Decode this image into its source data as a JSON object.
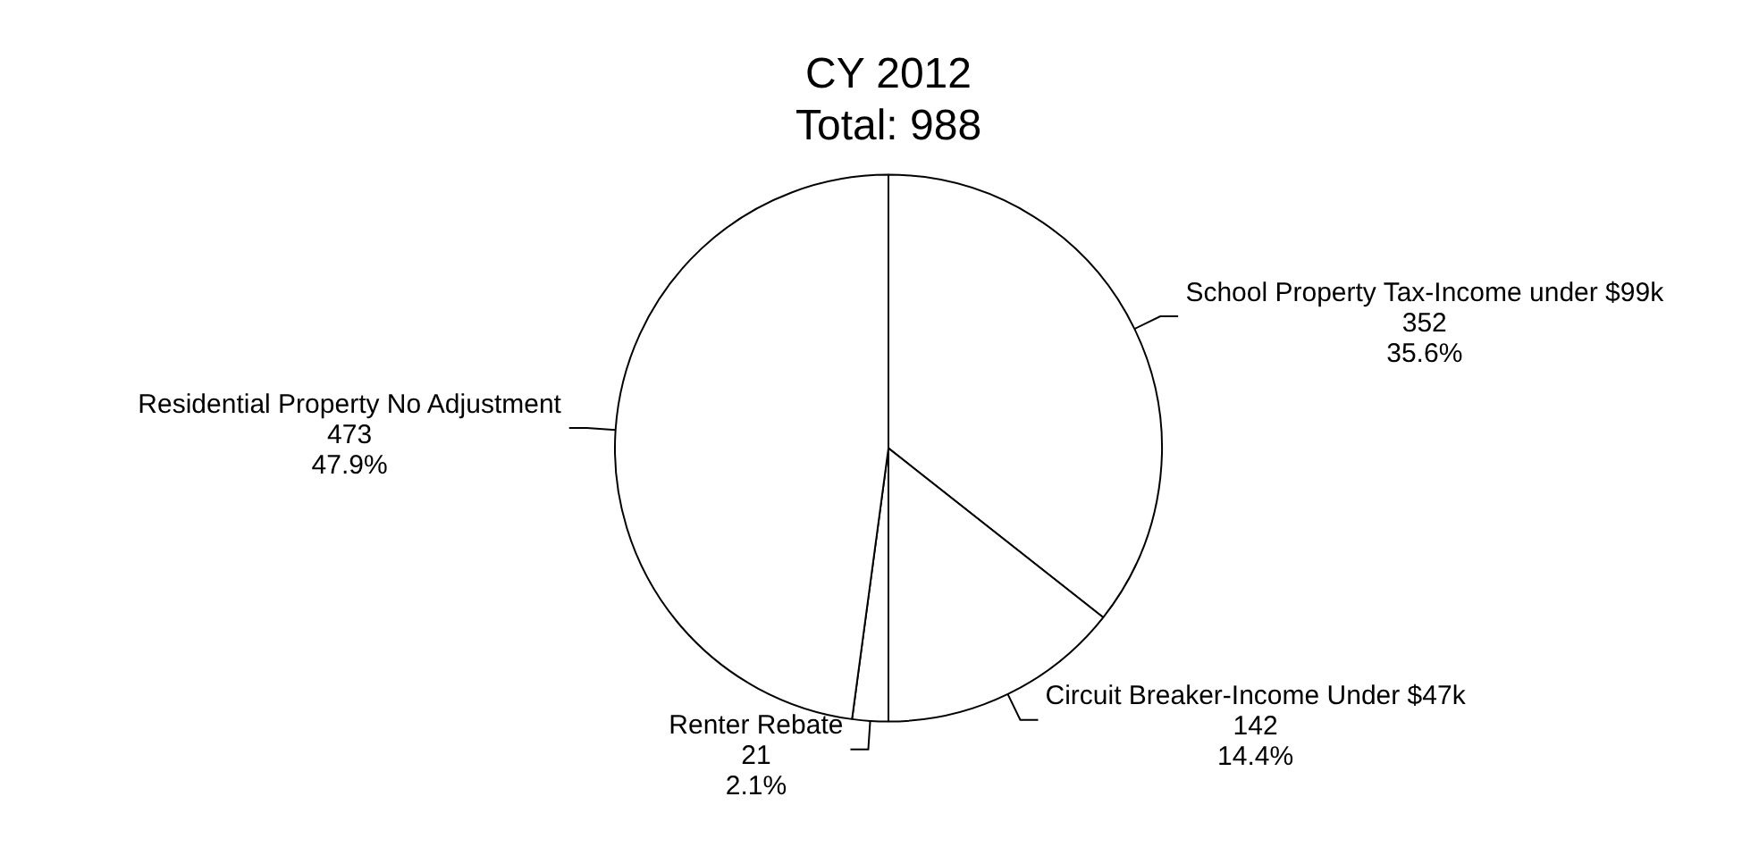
{
  "chart_data": {
    "type": "pie",
    "title": "CY 2012",
    "subtitle": "Total: 988",
    "categories": [
      "School Property Tax-Income under $99k",
      "Circuit Breaker-Income Under $47k",
      "Renter Rebate",
      "Residential Property No Adjustment"
    ],
    "values": [
      352,
      142,
      21,
      473
    ],
    "colors": [
      "#ffffff",
      "#ffffff",
      "#ffffff",
      "#ffffff"
    ],
    "value_labels": [
      "352\n35.6%",
      "142\n14.4%",
      "21\n2.1%",
      "473\n47.9%"
    ],
    "legend": false
  }
}
